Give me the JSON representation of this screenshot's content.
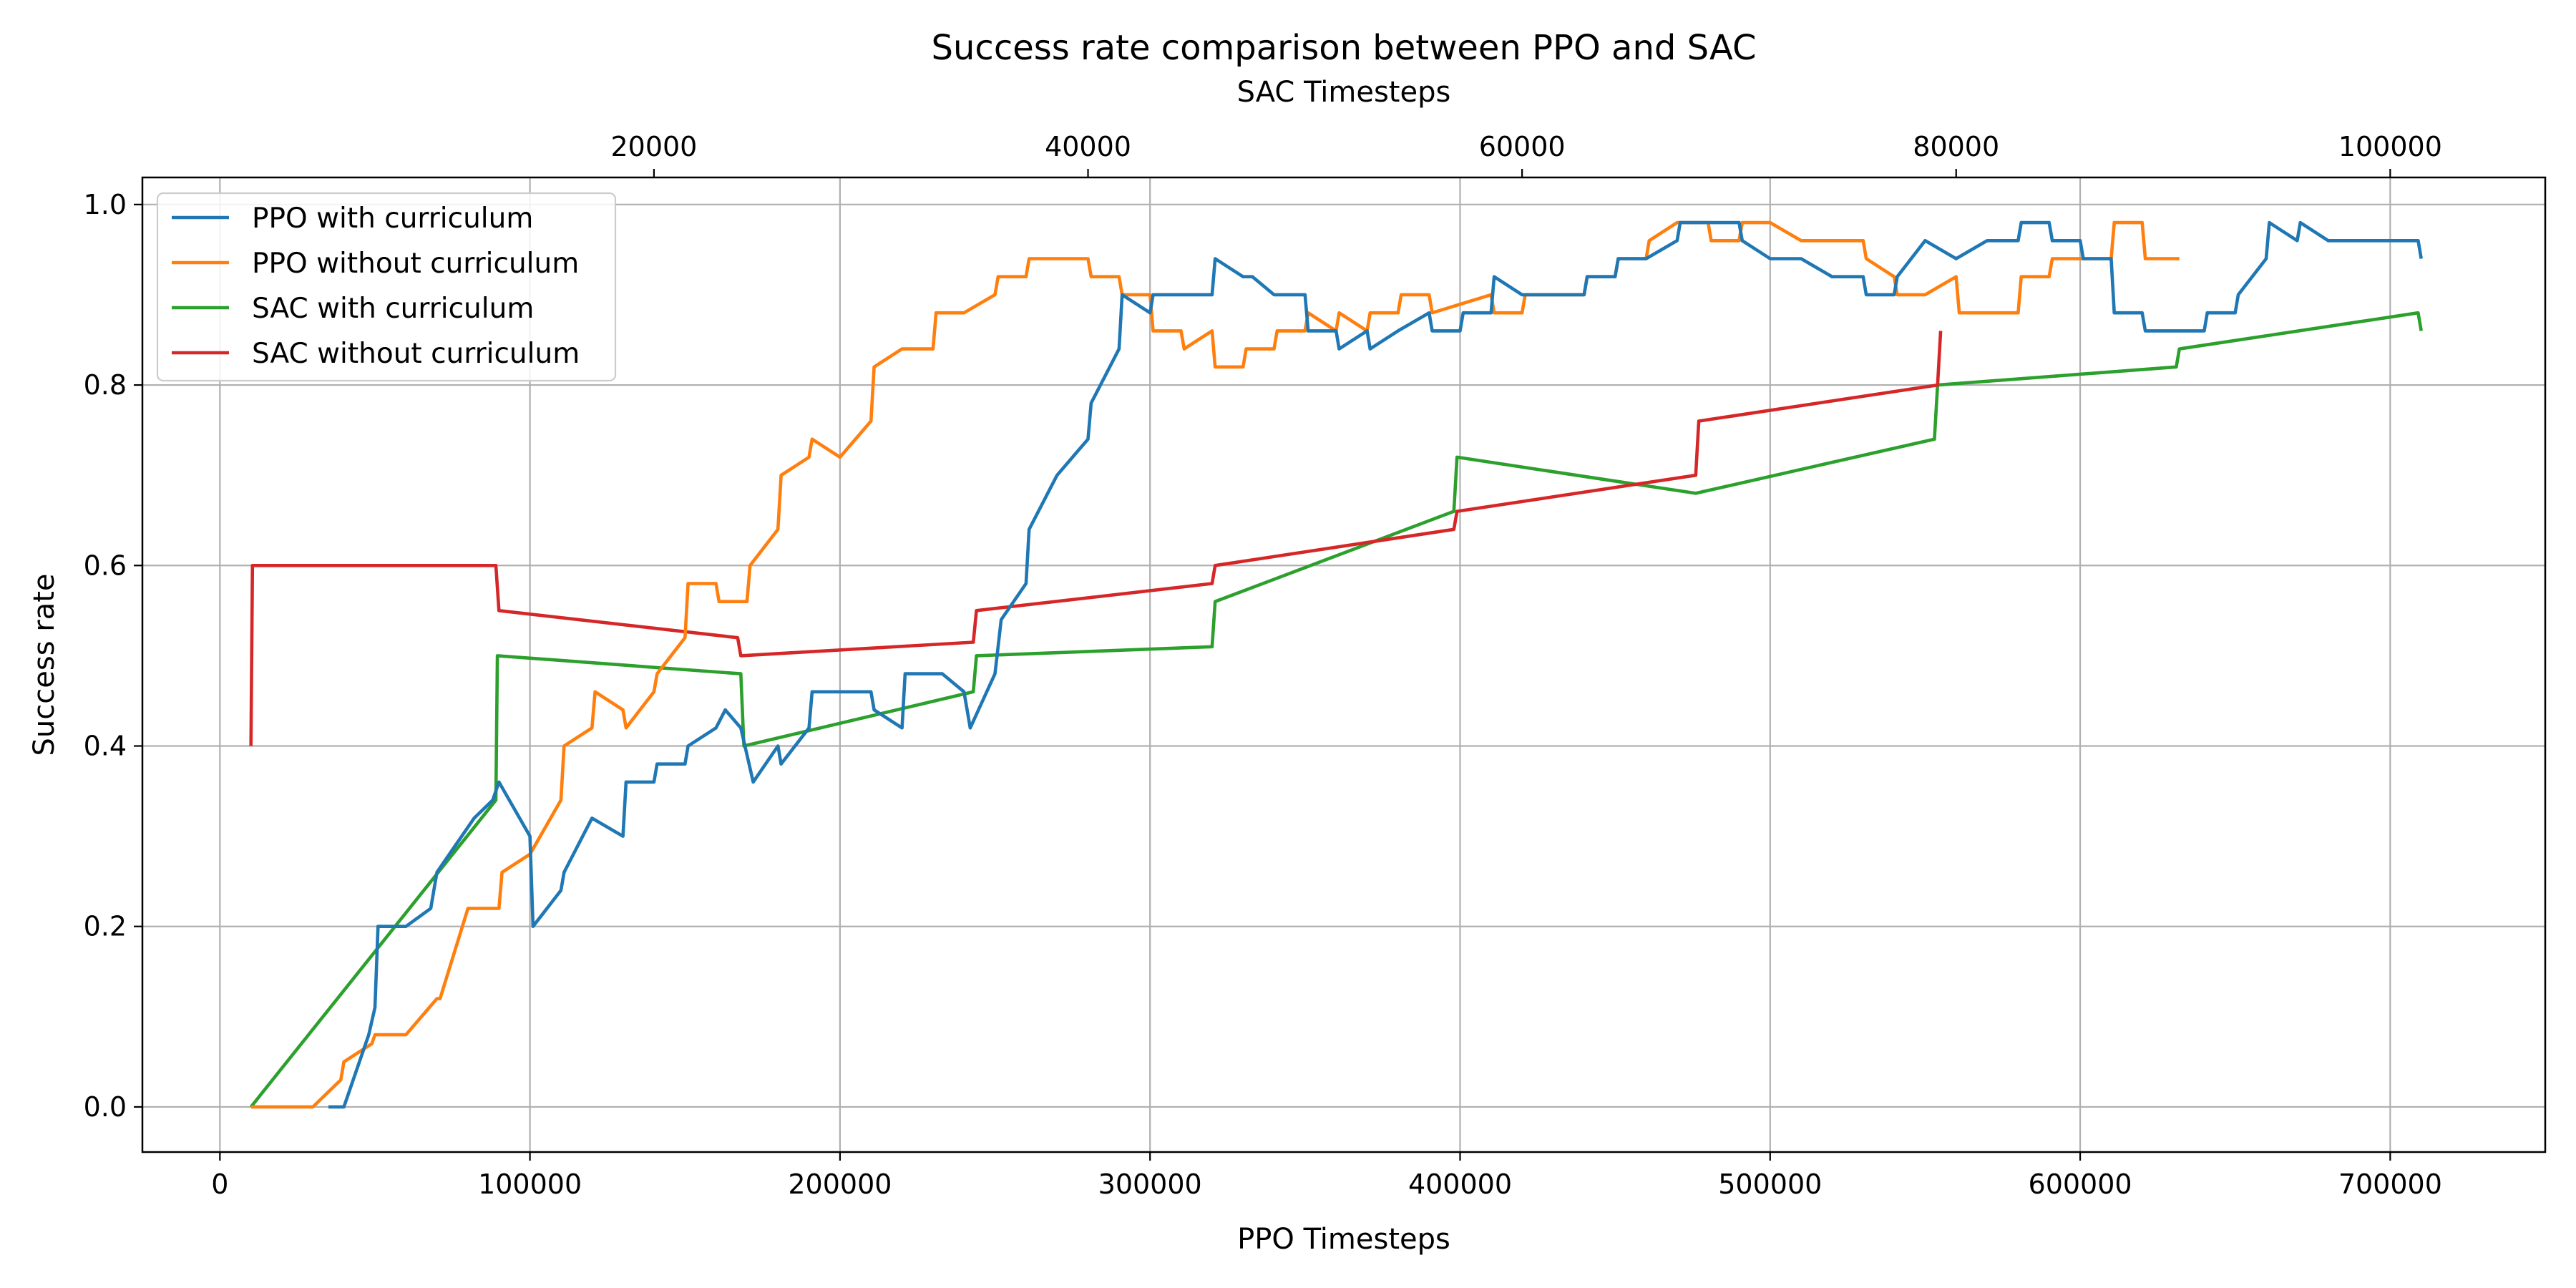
{
  "chart_data": {
    "type": "line",
    "title": "Success rate comparison between PPO and SAC",
    "xlabel": "PPO Timesteps",
    "x2label": "SAC Timesteps",
    "ylabel": "Success rate",
    "xlim": [
      -25000,
      750000
    ],
    "x2lim": [
      -3571,
      107143
    ],
    "ylim": [
      -0.05,
      1.03
    ],
    "xticks": [
      0,
      100000,
      200000,
      300000,
      400000,
      500000,
      600000,
      700000
    ],
    "xtick_labels": [
      "0",
      "100000",
      "200000",
      "300000",
      "400000",
      "500000",
      "600000",
      "700000"
    ],
    "x2ticks": [
      20000,
      40000,
      60000,
      80000,
      100000
    ],
    "x2tick_labels": [
      "20000",
      "40000",
      "60000",
      "80000",
      "100000"
    ],
    "yticks": [
      0.0,
      0.2,
      0.4,
      0.6,
      0.8,
      1.0
    ],
    "ytick_labels": [
      "0.0",
      "0.2",
      "0.4",
      "0.6",
      "0.8",
      "1.0"
    ],
    "grid": true,
    "legend_position": "upper-left",
    "series": [
      {
        "name": "PPO with curriculum",
        "axis": "bottom",
        "color": "#1f77b4",
        "points": [
          [
            35000,
            0
          ],
          [
            40000,
            0
          ],
          [
            45000,
            0.05
          ],
          [
            48000,
            0.08
          ],
          [
            50000,
            0.11
          ],
          [
            51000,
            0.2
          ],
          [
            60000,
            0.2
          ],
          [
            68000,
            0.22
          ],
          [
            70000,
            0.26
          ],
          [
            82000,
            0.32
          ],
          [
            88000,
            0.34
          ],
          [
            90000,
            0.36
          ],
          [
            100000,
            0.3
          ],
          [
            101000,
            0.2
          ],
          [
            110000,
            0.24
          ],
          [
            111000,
            0.26
          ],
          [
            120000,
            0.32
          ],
          [
            130000,
            0.3
          ],
          [
            131000,
            0.36
          ],
          [
            140000,
            0.36
          ],
          [
            141000,
            0.38
          ],
          [
            150000,
            0.38
          ],
          [
            151000,
            0.4
          ],
          [
            160000,
            0.42
          ],
          [
            163000,
            0.44
          ],
          [
            168000,
            0.42
          ],
          [
            172000,
            0.36
          ],
          [
            180000,
            0.4
          ],
          [
            181000,
            0.38
          ],
          [
            190000,
            0.42
          ],
          [
            191000,
            0.46
          ],
          [
            210000,
            0.46
          ],
          [
            211000,
            0.44
          ],
          [
            220000,
            0.42
          ],
          [
            221000,
            0.48
          ],
          [
            233000,
            0.48
          ],
          [
            240000,
            0.46
          ],
          [
            242000,
            0.42
          ],
          [
            250000,
            0.48
          ],
          [
            252000,
            0.54
          ],
          [
            260000,
            0.58
          ],
          [
            261000,
            0.64
          ],
          [
            270000,
            0.7
          ],
          [
            280000,
            0.74
          ],
          [
            281000,
            0.78
          ],
          [
            290000,
            0.84
          ],
          [
            291000,
            0.9
          ],
          [
            300000,
            0.88
          ],
          [
            301000,
            0.9
          ],
          [
            320000,
            0.9
          ],
          [
            321000,
            0.94
          ],
          [
            330000,
            0.92
          ],
          [
            333000,
            0.92
          ],
          [
            340000,
            0.9
          ],
          [
            350000,
            0.9
          ],
          [
            351000,
            0.86
          ],
          [
            360000,
            0.86
          ],
          [
            361000,
            0.84
          ],
          [
            370000,
            0.86
          ],
          [
            371000,
            0.84
          ],
          [
            380000,
            0.86
          ],
          [
            390000,
            0.88
          ],
          [
            391000,
            0.86
          ],
          [
            400000,
            0.86
          ],
          [
            401000,
            0.88
          ],
          [
            410000,
            0.88
          ],
          [
            411000,
            0.92
          ],
          [
            420000,
            0.9
          ],
          [
            421000,
            0.9
          ],
          [
            440000,
            0.9
          ],
          [
            441000,
            0.92
          ],
          [
            450000,
            0.92
          ],
          [
            451000,
            0.94
          ],
          [
            460000,
            0.94
          ],
          [
            470000,
            0.96
          ],
          [
            471000,
            0.98
          ],
          [
            490000,
            0.98
          ],
          [
            491000,
            0.96
          ],
          [
            500000,
            0.94
          ],
          [
            510000,
            0.94
          ],
          [
            520000,
            0.92
          ],
          [
            530000,
            0.92
          ],
          [
            531000,
            0.9
          ],
          [
            540000,
            0.9
          ],
          [
            541000,
            0.92
          ],
          [
            550000,
            0.96
          ],
          [
            560000,
            0.94
          ],
          [
            570000,
            0.96
          ],
          [
            580000,
            0.96
          ],
          [
            581000,
            0.98
          ],
          [
            590000,
            0.98
          ],
          [
            591000,
            0.96
          ],
          [
            600000,
            0.96
          ],
          [
            601000,
            0.94
          ],
          [
            610000,
            0.94
          ],
          [
            611000,
            0.88
          ],
          [
            620000,
            0.88
          ],
          [
            621000,
            0.86
          ],
          [
            640000,
            0.86
          ],
          [
            641000,
            0.88
          ],
          [
            650000,
            0.88
          ],
          [
            651000,
            0.9
          ],
          [
            660000,
            0.94
          ],
          [
            661000,
            0.98
          ],
          [
            670000,
            0.96
          ],
          [
            671000,
            0.98
          ],
          [
            680000,
            0.96
          ],
          [
            709000,
            0.96
          ],
          [
            710000,
            0.94
          ]
        ]
      },
      {
        "name": "PPO without curriculum",
        "axis": "bottom",
        "color": "#ff7f0e",
        "points": [
          [
            10000,
            0
          ],
          [
            30000,
            0
          ],
          [
            39000,
            0.03
          ],
          [
            40000,
            0.05
          ],
          [
            49000,
            0.07
          ],
          [
            50000,
            0.08
          ],
          [
            60000,
            0.08
          ],
          [
            70000,
            0.12
          ],
          [
            71000,
            0.12
          ],
          [
            80000,
            0.22
          ],
          [
            90000,
            0.22
          ],
          [
            91000,
            0.26
          ],
          [
            100000,
            0.28
          ],
          [
            110000,
            0.34
          ],
          [
            111000,
            0.4
          ],
          [
            120000,
            0.42
          ],
          [
            121000,
            0.46
          ],
          [
            130000,
            0.44
          ],
          [
            131000,
            0.42
          ],
          [
            140000,
            0.46
          ],
          [
            141000,
            0.48
          ],
          [
            150000,
            0.52
          ],
          [
            151000,
            0.58
          ],
          [
            160000,
            0.58
          ],
          [
            161000,
            0.56
          ],
          [
            170000,
            0.56
          ],
          [
            171000,
            0.6
          ],
          [
            180000,
            0.64
          ],
          [
            181000,
            0.7
          ],
          [
            190000,
            0.72
          ],
          [
            191000,
            0.74
          ],
          [
            200000,
            0.72
          ],
          [
            210000,
            0.76
          ],
          [
            211000,
            0.82
          ],
          [
            220000,
            0.84
          ],
          [
            230000,
            0.84
          ],
          [
            231000,
            0.88
          ],
          [
            240000,
            0.88
          ],
          [
            250000,
            0.9
          ],
          [
            251000,
            0.92
          ],
          [
            260000,
            0.92
          ],
          [
            261000,
            0.94
          ],
          [
            280000,
            0.94
          ],
          [
            281000,
            0.92
          ],
          [
            290000,
            0.92
          ],
          [
            291000,
            0.9
          ],
          [
            300000,
            0.9
          ],
          [
            301000,
            0.86
          ],
          [
            310000,
            0.86
          ],
          [
            311000,
            0.84
          ],
          [
            320000,
            0.86
          ],
          [
            321000,
            0.82
          ],
          [
            330000,
            0.82
          ],
          [
            331000,
            0.84
          ],
          [
            340000,
            0.84
          ],
          [
            341000,
            0.86
          ],
          [
            350000,
            0.86
          ],
          [
            351000,
            0.88
          ],
          [
            360000,
            0.86
          ],
          [
            361000,
            0.88
          ],
          [
            370000,
            0.86
          ],
          [
            371000,
            0.88
          ],
          [
            380000,
            0.88
          ],
          [
            381000,
            0.9
          ],
          [
            390000,
            0.9
          ],
          [
            391000,
            0.88
          ],
          [
            410000,
            0.9
          ],
          [
            411000,
            0.88
          ],
          [
            420000,
            0.88
          ],
          [
            421000,
            0.9
          ],
          [
            440000,
            0.9
          ],
          [
            441000,
            0.92
          ],
          [
            450000,
            0.92
          ],
          [
            451000,
            0.94
          ],
          [
            460000,
            0.94
          ],
          [
            461000,
            0.96
          ],
          [
            470000,
            0.98
          ],
          [
            480000,
            0.98
          ],
          [
            481000,
            0.96
          ],
          [
            490000,
            0.96
          ],
          [
            491000,
            0.98
          ],
          [
            500000,
            0.98
          ],
          [
            510000,
            0.96
          ],
          [
            530000,
            0.96
          ],
          [
            531000,
            0.94
          ],
          [
            540000,
            0.92
          ],
          [
            541000,
            0.9
          ],
          [
            550000,
            0.9
          ],
          [
            560000,
            0.92
          ],
          [
            561000,
            0.88
          ],
          [
            580000,
            0.88
          ],
          [
            581000,
            0.92
          ],
          [
            590000,
            0.92
          ],
          [
            591000,
            0.94
          ],
          [
            610000,
            0.94
          ],
          [
            611000,
            0.98
          ],
          [
            620000,
            0.98
          ],
          [
            621000,
            0.94
          ],
          [
            632000,
            0.94
          ]
        ]
      },
      {
        "name": "SAC with curriculum",
        "axis": "bottom",
        "color": "#2ca02c",
        "points": [
          [
            10000,
            0
          ],
          [
            89000,
            0.34
          ],
          [
            89500,
            0.5
          ],
          [
            168000,
            0.48
          ],
          [
            169000,
            0.4
          ],
          [
            243000,
            0.46
          ],
          [
            244000,
            0.5
          ],
          [
            320000,
            0.51
          ],
          [
            321000,
            0.56
          ],
          [
            398000,
            0.66
          ],
          [
            399000,
            0.72
          ],
          [
            476000,
            0.68
          ],
          [
            553000,
            0.74
          ],
          [
            554000,
            0.8
          ],
          [
            631000,
            0.82
          ],
          [
            632000,
            0.84
          ],
          [
            709000,
            0.88
          ],
          [
            710000,
            0.86
          ]
        ]
      },
      {
        "name": "SAC without curriculum",
        "axis": "bottom",
        "color": "#d62728",
        "points": [
          [
            10000,
            0.4
          ],
          [
            10500,
            0.6
          ],
          [
            89000,
            0.6
          ],
          [
            90000,
            0.55
          ],
          [
            167000,
            0.52
          ],
          [
            168000,
            0.5
          ],
          [
            243000,
            0.515
          ],
          [
            244000,
            0.55
          ],
          [
            320000,
            0.58
          ],
          [
            321000,
            0.6
          ],
          [
            398000,
            0.64
          ],
          [
            399000,
            0.66
          ],
          [
            476000,
            0.7
          ],
          [
            477000,
            0.76
          ],
          [
            554000,
            0.8
          ],
          [
            555000,
            0.86
          ]
        ]
      }
    ]
  }
}
